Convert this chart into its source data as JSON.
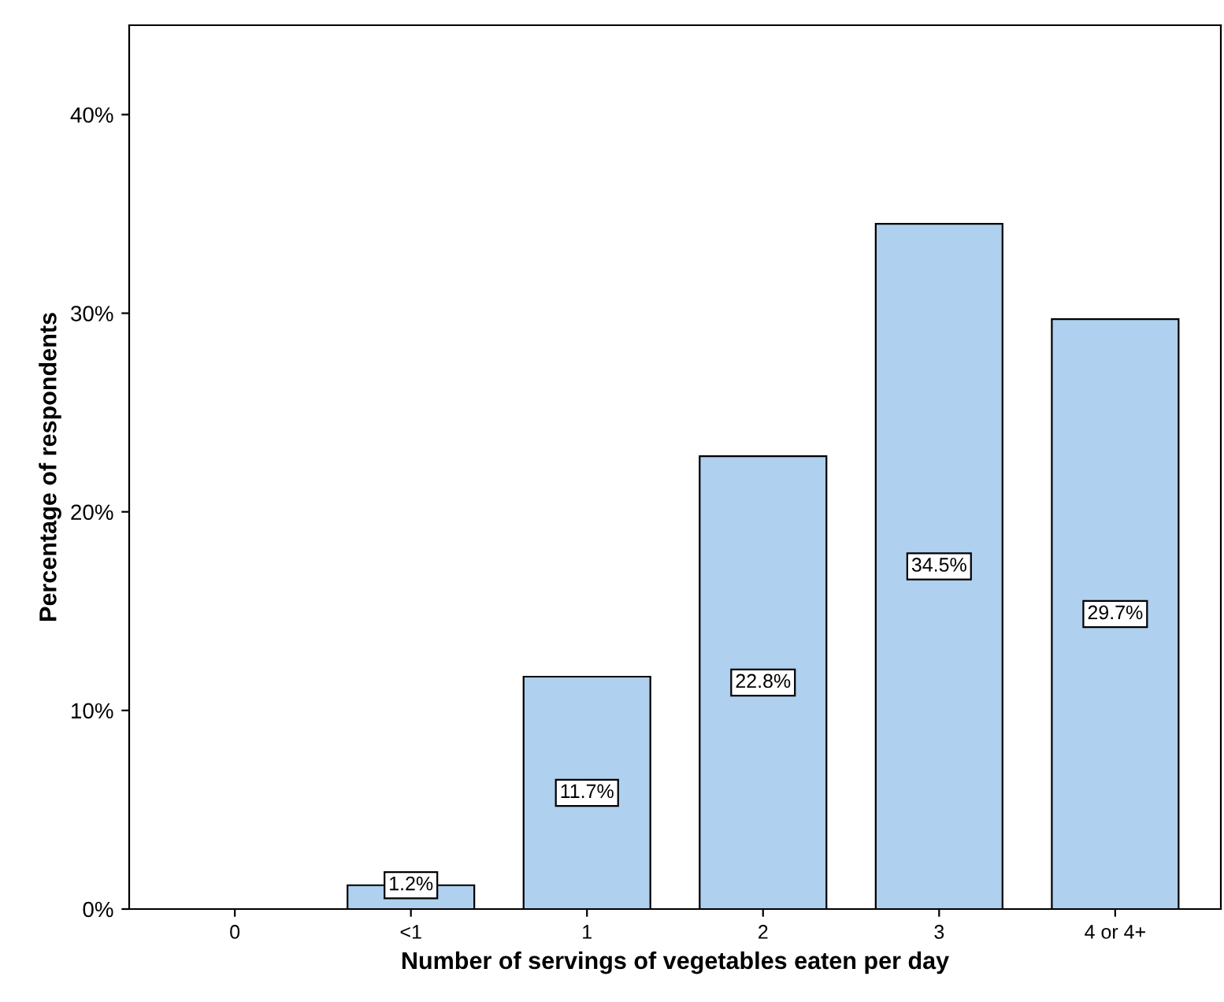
{
  "chart_data": {
    "type": "bar",
    "xlabel": "Number of servings of vegetables eaten per day",
    "ylabel": "Percentage of respondents",
    "categories": [
      "0",
      "<1",
      "1",
      "2",
      "3",
      "4 or 4+"
    ],
    "values": [
      0,
      1.2,
      11.7,
      22.8,
      34.5,
      29.7
    ],
    "value_labels": [
      null,
      "1.2%",
      "11.7%",
      "22.8%",
      "34.5%",
      "29.7%"
    ],
    "color": "#afd0ee",
    "ylim": [
      0,
      44.5
    ],
    "yticks": [
      {
        "value": 0,
        "label": "0%"
      },
      {
        "value": 10,
        "label": "10%"
      },
      {
        "value": 20,
        "label": "20%"
      },
      {
        "value": 30,
        "label": "30%"
      },
      {
        "value": 40,
        "label": "40%"
      }
    ],
    "grid": false,
    "legend": false
  }
}
